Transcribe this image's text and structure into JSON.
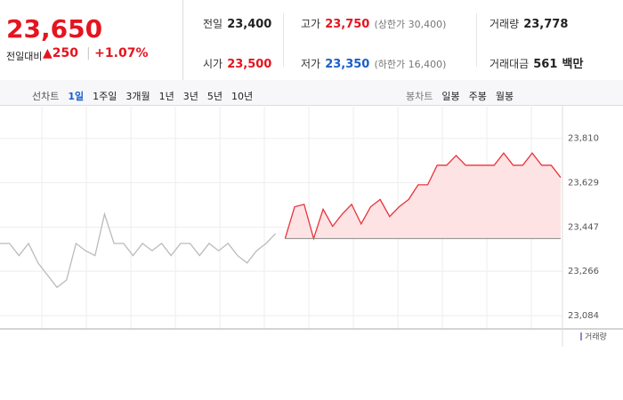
{
  "price": {
    "current": "23,650",
    "change_label": "전일대비",
    "change": "250",
    "rate": "+1.07%"
  },
  "stats": [
    {
      "label": "전일",
      "value": "23,400"
    },
    {
      "label": "고가",
      "value": "23,750",
      "note": "(상한가 30,400)"
    },
    {
      "label": "거래량",
      "value": "23,778"
    },
    {
      "label": "시가",
      "value": "23,500"
    },
    {
      "label": "저가",
      "value": "23,350",
      "note": "(하한가 16,400)"
    },
    {
      "label": "거래대금",
      "value": "561",
      "unit": "백만"
    }
  ],
  "tabs": {
    "line_label": "선차트",
    "line": [
      "1일",
      "1주일",
      "3개월",
      "1년",
      "3년",
      "5년",
      "10년"
    ],
    "candle_label": "봉차트",
    "candle": [
      "일봉",
      "주봉",
      "월봉"
    ]
  },
  "chart_data": {
    "type": "line",
    "volume_label": "거래량",
    "baseline": 23400,
    "series": [
      {
        "color": "#bbbbbb",
        "values": [
          23380,
          23380,
          23330,
          23380,
          23300,
          23250,
          23200,
          23230,
          23380,
          23350,
          23330,
          23500,
          23380,
          23380,
          23330,
          23380,
          23350,
          23380,
          23330,
          23380,
          23380,
          23330,
          23380,
          23350,
          23380,
          23330,
          23300,
          23350,
          23380,
          23420,
          null,
          null,
          null,
          null,
          null,
          null,
          null,
          null,
          null,
          null,
          null,
          null,
          null,
          null,
          null,
          null,
          null,
          null,
          null,
          null,
          null,
          null,
          null,
          null,
          null,
          null,
          null,
          null,
          null,
          null
        ]
      },
      {
        "color": "#e8343c",
        "values": [
          null,
          null,
          null,
          null,
          null,
          null,
          null,
          null,
          null,
          null,
          null,
          null,
          null,
          null,
          null,
          null,
          null,
          null,
          null,
          null,
          null,
          null,
          null,
          null,
          null,
          null,
          null,
          null,
          null,
          null,
          23400,
          23530,
          23540,
          23400,
          23520,
          23450,
          23500,
          23540,
          23460,
          23530,
          23560,
          23490,
          23530,
          23560,
          23620,
          23620,
          23700,
          23700,
          23740,
          23700,
          23700,
          23700,
          23700,
          23750,
          23700,
          23700,
          23750,
          23700,
          23700,
          23650
        ]
      }
    ],
    "ylim": [
      23030,
      23940
    ],
    "yticks": [
      {
        "value": 23084,
        "label": "23,084"
      },
      {
        "value": 23266,
        "label": "23,266"
      },
      {
        "value": 23447,
        "label": "23,447"
      },
      {
        "value": 23629,
        "label": "23,629"
      },
      {
        "value": 23810,
        "label": "23,810"
      }
    ]
  }
}
